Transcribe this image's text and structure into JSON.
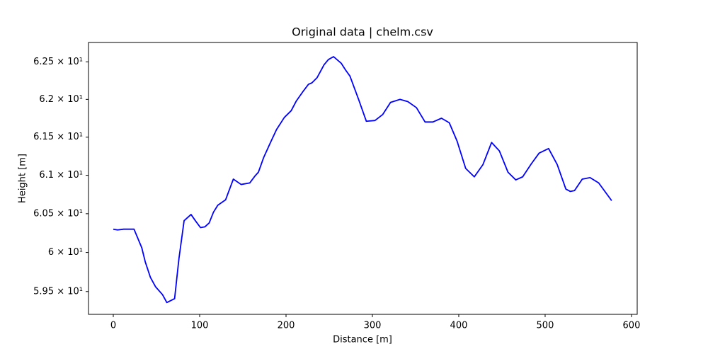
{
  "chart_data": {
    "type": "line",
    "title": "Original data | chelm.csv",
    "xlabel": "Distance [m]",
    "ylabel": "Height [m]",
    "x": [
      0,
      5,
      12,
      24,
      33,
      37,
      43,
      49,
      57,
      62,
      71,
      76,
      82,
      90,
      95,
      101,
      106,
      111,
      116,
      121,
      130,
      139,
      148,
      158,
      164,
      168,
      174,
      182,
      189,
      198,
      206,
      212,
      220,
      226,
      230,
      236,
      244,
      249,
      255,
      264,
      269,
      274,
      284,
      293,
      303,
      312,
      321,
      332,
      341,
      351,
      361,
      370,
      380,
      389,
      398,
      408,
      418,
      428,
      438,
      447,
      457,
      466,
      474,
      484,
      493,
      504,
      514,
      524,
      529,
      534,
      543,
      552,
      562,
      577
    ],
    "series": [
      {
        "name": "height",
        "color": "#0000ff",
        "values": [
          60.3,
          60.29,
          60.3,
          60.3,
          60.06,
          59.88,
          59.68,
          59.56,
          59.46,
          59.36,
          59.41,
          59.92,
          60.41,
          60.49,
          60.41,
          60.32,
          60.33,
          60.38,
          60.52,
          60.61,
          60.68,
          60.95,
          60.88,
          60.9,
          60.99,
          61.04,
          61.23,
          61.43,
          61.6,
          61.76,
          61.85,
          61.98,
          62.11,
          62.2,
          62.22,
          62.29,
          62.46,
          62.53,
          62.57,
          62.48,
          62.39,
          62.31,
          62.0,
          61.71,
          61.72,
          61.8,
          61.96,
          62.0,
          61.97,
          61.89,
          61.7,
          61.7,
          61.75,
          61.69,
          61.45,
          61.09,
          60.98,
          61.14,
          61.43,
          61.32,
          61.04,
          60.94,
          60.98,
          61.15,
          61.29,
          61.35,
          61.14,
          60.82,
          60.79,
          60.8,
          60.95,
          60.97,
          60.9,
          60.67
        ]
      }
    ],
    "xlim": [
      -28.7,
      606.6
    ],
    "xticks": [
      0,
      100,
      200,
      300,
      400,
      500,
      600
    ],
    "ylim": [
      59.21,
      62.76
    ],
    "y_log_scale": true,
    "yticks": [
      {
        "value": 59.5,
        "label": "5.95 × 10¹"
      },
      {
        "value": 60,
        "label": "6 × 10¹"
      },
      {
        "value": 60.5,
        "label": "6.05 × 10¹"
      },
      {
        "value": 61,
        "label": "6.1 × 10¹"
      },
      {
        "value": 61.5,
        "label": "6.15 × 10¹"
      },
      {
        "value": 62,
        "label": "6.2 × 10¹"
      },
      {
        "value": 62.5,
        "label": "6.25 × 10¹"
      }
    ],
    "grid": false
  }
}
